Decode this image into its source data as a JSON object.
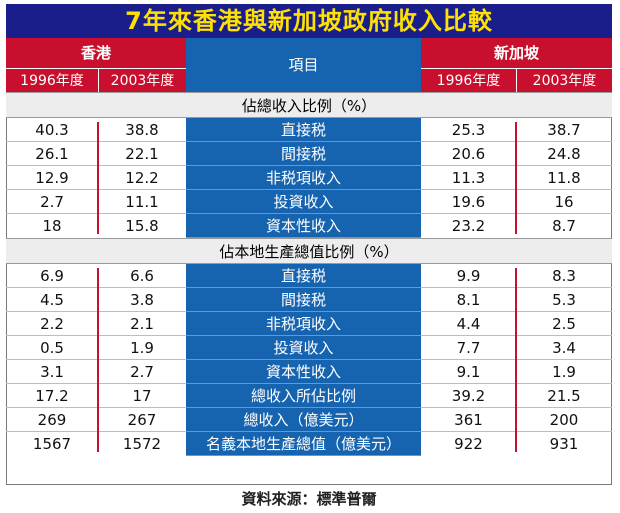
{
  "title": "7年來香港與新加坡政府收入比較",
  "hk_label": "香港",
  "sg_label": "新加坡",
  "item_label": "項目",
  "years": [
    "1996年度",
    "2003年度"
  ],
  "sections": [
    {
      "heading": "佔總收入比例（%）",
      "rows": [
        {
          "item": "直接税",
          "hk1996": "40.3",
          "hk2003": "38.8",
          "sg1996": "25.3",
          "sg2003": "38.7"
        },
        {
          "item": "間接税",
          "hk1996": "26.1",
          "hk2003": "22.1",
          "sg1996": "20.6",
          "sg2003": "24.8"
        },
        {
          "item": "非税項收入",
          "hk1996": "12.9",
          "hk2003": "12.2",
          "sg1996": "11.3",
          "sg2003": "11.8"
        },
        {
          "item": "投資收入",
          "hk1996": "2.7",
          "hk2003": "11.1",
          "sg1996": "19.6",
          "sg2003": "16"
        },
        {
          "item": "資本性收入",
          "hk1996": "18",
          "hk2003": "15.8",
          "sg1996": "23.2",
          "sg2003": "8.7"
        }
      ]
    },
    {
      "heading": "佔本地生產總值比例（%）",
      "rows": [
        {
          "item": "直接税",
          "hk1996": "6.9",
          "hk2003": "6.6",
          "sg1996": "9.9",
          "sg2003": "8.3"
        },
        {
          "item": "間接税",
          "hk1996": "4.5",
          "hk2003": "3.8",
          "sg1996": "8.1",
          "sg2003": "5.3"
        },
        {
          "item": "非税項收入",
          "hk1996": "2.2",
          "hk2003": "2.1",
          "sg1996": "4.4",
          "sg2003": "2.5"
        },
        {
          "item": "投資收入",
          "hk1996": "0.5",
          "hk2003": "1.9",
          "sg1996": "7.7",
          "sg2003": "3.4"
        },
        {
          "item": "資本性收入",
          "hk1996": "3.1",
          "hk2003": "2.7",
          "sg1996": "9.1",
          "sg2003": "1.9"
        },
        {
          "item": "總收入所佔比例",
          "hk1996": "17.2",
          "hk2003": "17",
          "sg1996": "39.2",
          "sg2003": "21.5"
        },
        {
          "item": "總收入（億美元）",
          "hk1996": "269",
          "hk2003": "267",
          "sg1996": "361",
          "sg2003": "200"
        },
        {
          "item": "名義本地生產總值（億美元）",
          "hk1996": "1567",
          "hk2003": "1572",
          "sg1996": "922",
          "sg2003": "931"
        }
      ]
    }
  ],
  "source": "資料來源：標準普爾"
}
